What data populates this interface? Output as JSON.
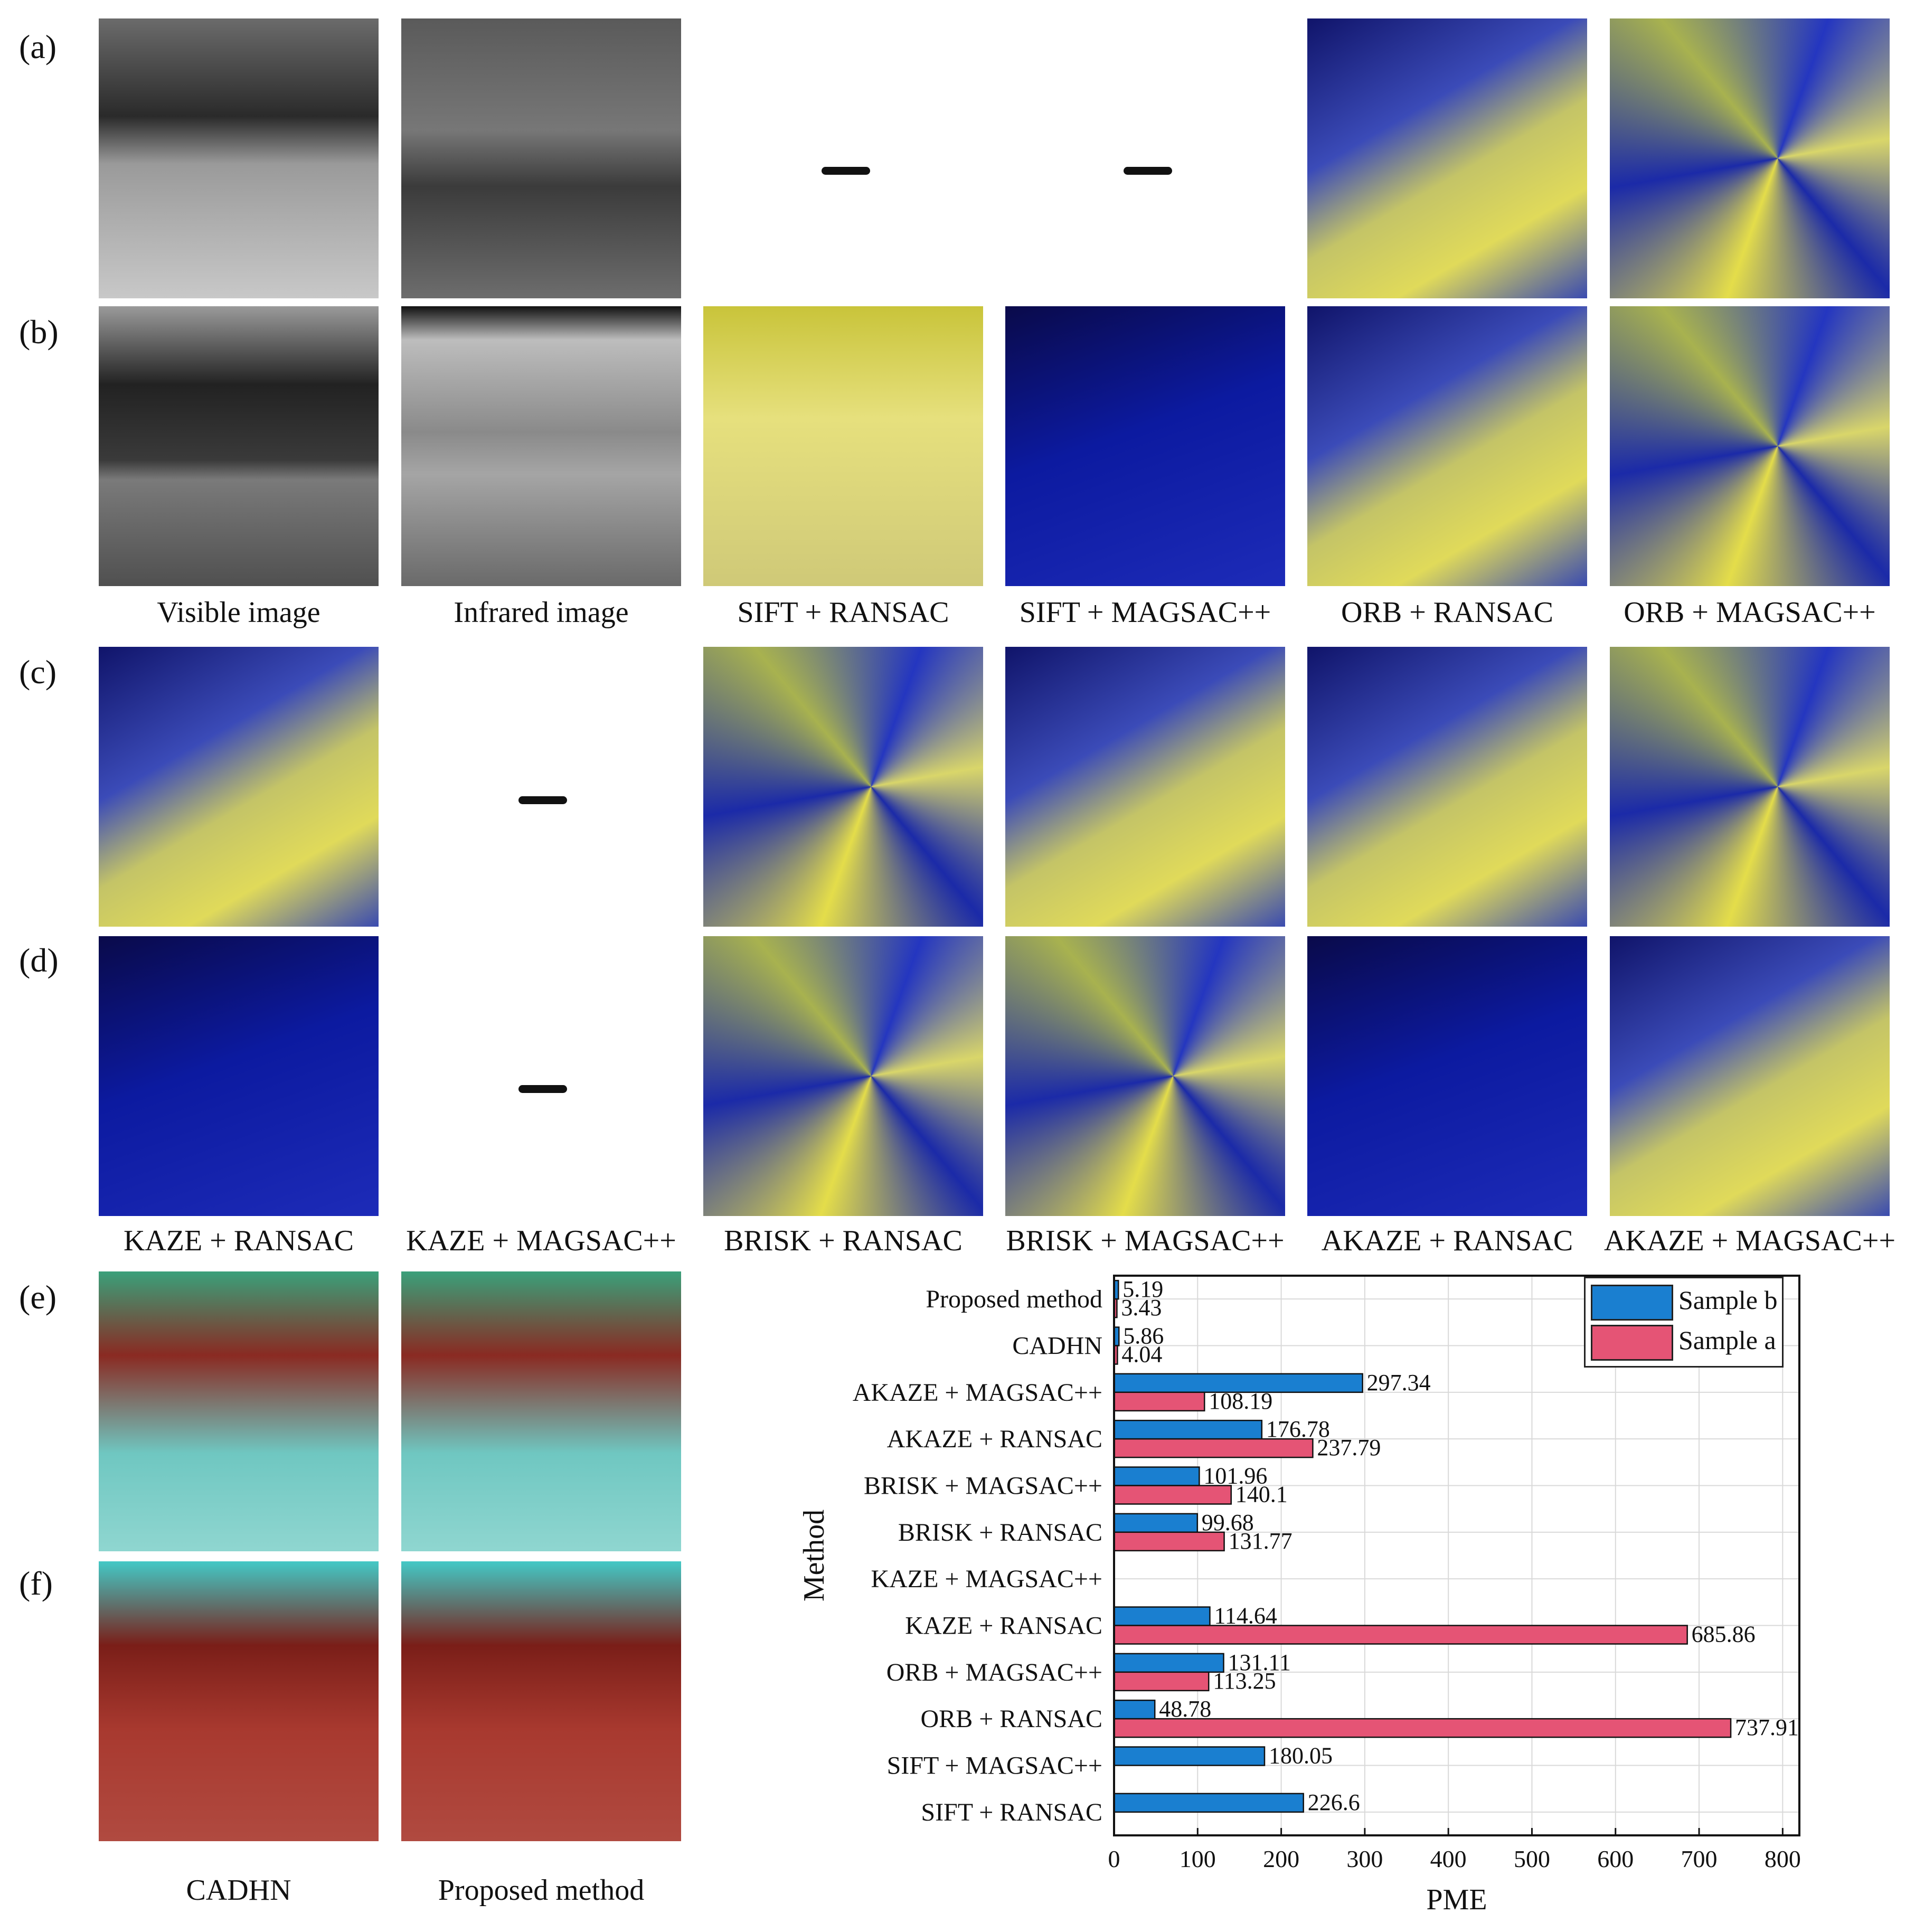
{
  "row_labels": [
    "(a)",
    "(b)",
    "(c)",
    "(d)",
    "(e)",
    "(f)"
  ],
  "captions_row_ab": [
    "Visible image",
    "Infrared image",
    "SIFT + RANSAC",
    "SIFT + MAGSAC++",
    "ORB + RANSAC",
    "ORB + MAGSAC++"
  ],
  "captions_row_cd": [
    "KAZE + RANSAC",
    "KAZE + MAGSAC++",
    "BRISK + RANSAC",
    "BRISK + MAGSAC++",
    "AKAZE + RANSAC",
    "AKAZE + MAGSAC++"
  ],
  "captions_row_ef": [
    "CADHN",
    "Proposed method"
  ],
  "colors": {
    "sample_b": "#1a7fd0",
    "sample_a": "#e55475",
    "grid": "#d9d9d9"
  },
  "chart_data": {
    "type": "bar",
    "orientation": "horizontal",
    "categories": [
      "Proposed method",
      "CADHN",
      "AKAZE + MAGSAC++",
      "AKAZE + RANSAC",
      "BRISK + MAGSAC++",
      "BRISK + RANSAC",
      "KAZE + MAGSAC++",
      "KAZE + RANSAC",
      "ORB + MAGSAC++",
      "ORB + RANSAC",
      "SIFT + MAGSAC++",
      "SIFT + RANSAC"
    ],
    "series": [
      {
        "name": "Sample b",
        "values": [
          5.19,
          5.86,
          297.34,
          176.78,
          101.96,
          99.68,
          null,
          114.64,
          131.11,
          48.78,
          180.05,
          226.6
        ],
        "labels": [
          "5.19",
          "5.86",
          "297.34",
          "176.78",
          "101.96",
          "99.68",
          "",
          "114.64",
          "131.11",
          "48.78",
          "180.05",
          "226.6"
        ]
      },
      {
        "name": "Sample a",
        "values": [
          3.43,
          4.04,
          108.19,
          237.79,
          140.1,
          131.77,
          null,
          685.86,
          113.25,
          737.91,
          null,
          null
        ],
        "labels": [
          "3.43",
          "4.04",
          "108.19",
          "237.79",
          "140.1",
          "131.77",
          "",
          "685.86",
          "113.25",
          "737.91",
          "",
          ""
        ]
      }
    ],
    "xlabel": "PME",
    "ylabel": "Method",
    "xlim": [
      0,
      820
    ],
    "xticks": [
      0,
      100,
      200,
      300,
      400,
      500,
      600,
      700,
      800
    ],
    "grid": true,
    "legend_position": "top-right"
  }
}
